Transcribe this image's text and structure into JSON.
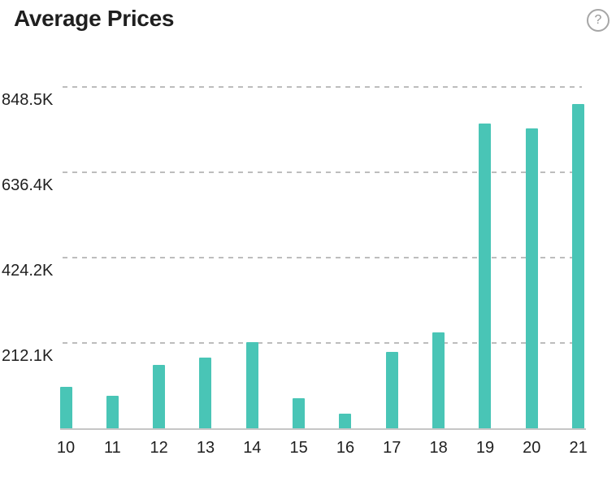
{
  "header": {
    "title": "Average Prices",
    "help_icon": "?"
  },
  "colors": {
    "bar": "#49c5b6",
    "gridline": "#bdbdbd",
    "axis_line": "#c6c6c6",
    "text": "#1f1f1f",
    "help_icon": "#949494"
  },
  "chart_data": {
    "type": "bar",
    "title": "Average Prices",
    "categories": [
      "10",
      "11",
      "12",
      "13",
      "14",
      "15",
      "16",
      "17",
      "18",
      "19",
      "20",
      "21"
    ],
    "values": [
      102,
      80,
      157,
      175,
      213,
      74,
      37,
      189,
      239,
      757,
      744,
      805
    ],
    "unit": "K",
    "xlabel": "",
    "ylabel": "",
    "y_ticks": [
      {
        "label": "212.1K",
        "value": 212.1
      },
      {
        "label": "424.2K",
        "value": 424.2
      },
      {
        "label": "636.4K",
        "value": 636.4
      },
      {
        "label": "848.5K",
        "value": 848.5
      }
    ],
    "ylim": [
      0,
      890
    ],
    "grid": "horizontal-dashed",
    "legend": "none",
    "bar_color": "#49c5b6"
  }
}
